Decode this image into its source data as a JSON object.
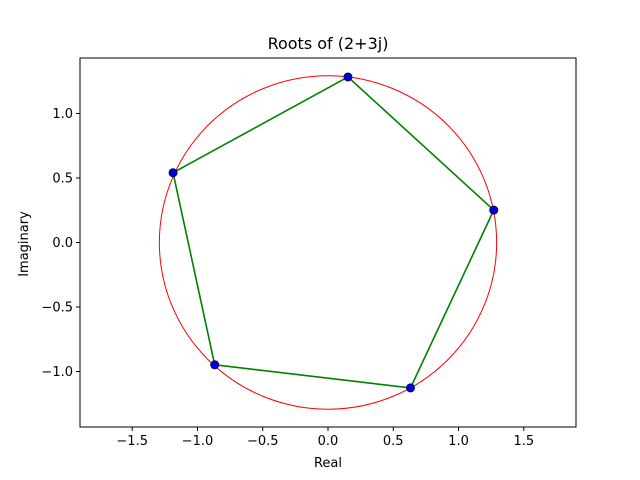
{
  "chart_data": {
    "type": "scatter",
    "title": "Roots of (2+3j)",
    "xlabel": "Real",
    "ylabel": "Imaginary",
    "xlim": [
      -1.9,
      1.9
    ],
    "ylim": [
      -1.43,
      1.43
    ],
    "xticks": [
      -1.5,
      -1.0,
      -0.5,
      0.0,
      0.5,
      1.0,
      1.5
    ],
    "xtick_labels": [
      "−1.5",
      "−1.0",
      "−0.5",
      "0.0",
      "0.5",
      "1.0",
      "1.5"
    ],
    "yticks": [
      -1.0,
      -0.5,
      0.0,
      0.5,
      1.0
    ],
    "ytick_labels": [
      "−1.0",
      "−0.5",
      "0.0",
      "0.5",
      "1.0"
    ],
    "grid": false,
    "series": [
      {
        "kind": "circle",
        "color": "#ff0000",
        "center": [
          0,
          0
        ],
        "radius": 1.292
      },
      {
        "kind": "polygon",
        "color": "#008000",
        "x": [
          0.153,
          1.27,
          0.632,
          -0.868,
          -1.187
        ],
        "y": [
          1.283,
          0.251,
          -1.127,
          -0.948,
          0.541
        ]
      },
      {
        "kind": "points",
        "color": "#0000cc",
        "edge_color": "#000080",
        "x": [
          0.153,
          1.27,
          0.632,
          -0.868,
          -1.187
        ],
        "y": [
          1.283,
          0.251,
          -1.127,
          -0.948,
          0.541
        ]
      }
    ]
  }
}
